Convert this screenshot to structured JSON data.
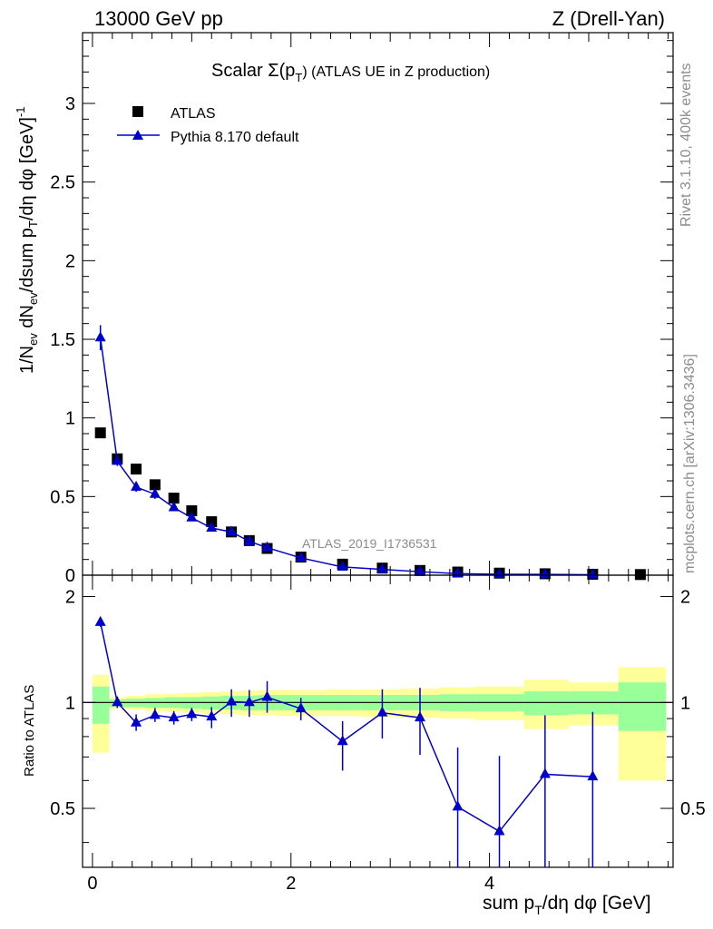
{
  "header": {
    "left": "13000 GeV pp",
    "right": "Z (Drell-Yan)"
  },
  "side": {
    "rivet": "Rivet 3.1.10,  400k events",
    "source": "mcplots.cern.ch [arXiv:1306.3436]"
  },
  "watermark": "ATLAS_2019_I1736531",
  "colors": {
    "mc": "#0000cc",
    "data": "#000000",
    "band_inner": "#99ff99",
    "band_outer": "#ffff99"
  },
  "chart_data": [
    {
      "type": "scatter",
      "panel": "main",
      "title": "Scalar Σ(pT) (ATLAS UE in Z production)",
      "title_parts": {
        "pre": "Scalar Σ(p",
        "sub": "T",
        "post": ") (ATLAS UE in Z production)"
      },
      "ylabel": "1/Nev dNev/dsum pT/dη dφ [GeV]-1",
      "xlim": [
        -0.1,
        5.85
      ],
      "ylim": [
        0,
        3.45
      ],
      "yticks": [
        0,
        0.5,
        1,
        1.5,
        2,
        2.5,
        3
      ],
      "ytick_labels": [
        "0",
        "0.5",
        "1",
        "1.5",
        "2",
        "2.5",
        "3"
      ],
      "legend": [
        "ATLAS",
        "Pythia 8.170 default"
      ],
      "legend_position": "top-left",
      "series": [
        {
          "name": "ATLAS",
          "marker": "square",
          "x": [
            0.08,
            0.25,
            0.44,
            0.63,
            0.82,
            1.0,
            1.2,
            1.4,
            1.58,
            1.76,
            2.1,
            2.52,
            2.92,
            3.3,
            3.68,
            4.1,
            4.56,
            5.04,
            5.52
          ],
          "y": [
            0.905,
            0.74,
            0.675,
            0.575,
            0.49,
            0.41,
            0.34,
            0.275,
            0.22,
            0.17,
            0.115,
            0.07,
            0.045,
            0.03,
            0.02,
            0.013,
            0.009,
            0.006,
            0.004
          ]
        },
        {
          "name": "Pythia 8.170 default",
          "marker": "triangle",
          "x": [
            0.08,
            0.25,
            0.44,
            0.63,
            0.82,
            1.0,
            1.2,
            1.4,
            1.58,
            1.76,
            2.1,
            2.52,
            2.92,
            3.3,
            3.68,
            4.1,
            4.56,
            5.04
          ],
          "y": [
            1.51,
            0.725,
            0.56,
            0.515,
            0.43,
            0.365,
            0.3,
            0.275,
            0.215,
            0.175,
            0.11,
            0.052,
            0.037,
            0.022,
            0.01,
            0.006,
            0.005,
            0.003
          ],
          "yerr": [
            0.08,
            0.03,
            0.03,
            0.03,
            0.02,
            0.02,
            0.02,
            0.015,
            0.015,
            0.01,
            0.008,
            0.004,
            0.003,
            0.002,
            0.002,
            0.002,
            0.002,
            0.002
          ]
        }
      ]
    },
    {
      "type": "scatter",
      "panel": "ratio",
      "ylabel": "Ratio to ATLAS",
      "xlabel": "sum pT/dη dφ [GeV]",
      "xlabel_parts": {
        "pre": "sum p",
        "sub": "T",
        "post": "/dη dφ [GeV]"
      },
      "xlim": [
        -0.1,
        5.85
      ],
      "ylim": [
        0.34,
        2.3
      ],
      "xticks": [
        0,
        2,
        4
      ],
      "xtick_labels": [
        "0",
        "2",
        "4"
      ],
      "yticks": [
        0.5,
        1,
        2
      ],
      "ytick_labels": [
        "0.5",
        "1",
        "2"
      ],
      "bands": {
        "edges": [
          0,
          0.17,
          0.34,
          0.535,
          0.725,
          0.91,
          1.1,
          1.3,
          1.49,
          1.67,
          1.85,
          2.35,
          2.7,
          3.1,
          3.5,
          3.85,
          4.35,
          4.8,
          5.3,
          5.78
        ],
        "inner_lo": [
          0.87,
          0.97,
          0.97,
          0.965,
          0.965,
          0.96,
          0.955,
          0.955,
          0.95,
          0.95,
          0.95,
          0.95,
          0.95,
          0.95,
          0.945,
          0.945,
          0.92,
          0.925,
          0.83
        ],
        "inner_hi": [
          1.11,
          1.02,
          1.025,
          1.03,
          1.035,
          1.035,
          1.04,
          1.045,
          1.045,
          1.05,
          1.05,
          1.05,
          1.05,
          1.05,
          1.055,
          1.055,
          1.075,
          1.075,
          1.14
        ],
        "outer_lo": [
          0.72,
          0.96,
          0.955,
          0.945,
          0.94,
          0.935,
          0.93,
          0.925,
          0.92,
          0.92,
          0.915,
          0.915,
          0.91,
          0.905,
          0.9,
          0.89,
          0.84,
          0.86,
          0.6
        ],
        "outer_hi": [
          1.2,
          1.035,
          1.045,
          1.055,
          1.06,
          1.065,
          1.07,
          1.075,
          1.08,
          1.085,
          1.085,
          1.09,
          1.09,
          1.095,
          1.105,
          1.11,
          1.16,
          1.14,
          1.26
        ]
      },
      "series": [
        {
          "name": "Pythia 8.170 default",
          "marker": "triangle",
          "x": [
            0.08,
            0.25,
            0.44,
            0.63,
            0.82,
            1.0,
            1.2,
            1.4,
            1.58,
            1.76,
            2.1,
            2.52,
            2.92,
            3.3,
            3.68,
            4.1,
            4.56,
            5.04
          ],
          "y": [
            1.69,
            1.0,
            0.875,
            0.92,
            0.905,
            0.925,
            0.91,
            1.005,
            1.0,
            1.035,
            0.96,
            0.775,
            0.935,
            0.905,
            0.505,
            0.43,
            0.625,
            0.615
          ],
          "ylo": [
            1.64,
            0.965,
            0.83,
            0.88,
            0.865,
            0.885,
            0.845,
            0.91,
            0.91,
            0.935,
            0.89,
            0.64,
            0.79,
            0.71,
            0.27,
            0.16,
            0.33,
            0.3
          ],
          "yhi": [
            1.74,
            1.04,
            0.925,
            0.965,
            0.945,
            0.965,
            0.97,
            1.09,
            1.085,
            1.15,
            1.03,
            0.885,
            1.09,
            1.1,
            0.745,
            0.705,
            0.92,
            0.94
          ]
        }
      ]
    }
  ]
}
